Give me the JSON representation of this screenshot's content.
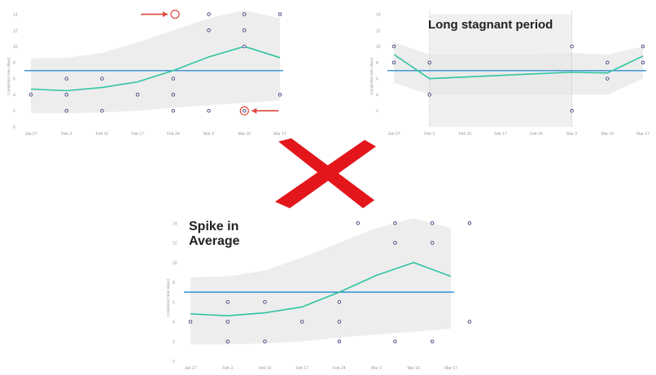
{
  "colors": {
    "average_line": "#2f8fd0",
    "trend_line": "#2ec4a0",
    "band_fill": "#ededed",
    "point_stroke": "#3a3f7a",
    "highlight": "#e0453a",
    "cross": "#e3161b",
    "grid": "#f3f3f3"
  },
  "annotations": {
    "long_stagnant_period": "Long stagnant period",
    "spike_line1": "Spike in",
    "spike_line2": "Average"
  },
  "chart_data": [
    {
      "type": "scatter",
      "panel": "top-left",
      "title": "",
      "ylabel": "Completion time (days)",
      "x_tick_labels": [
        "Jan 27",
        "Feb 3",
        "Feb 10",
        "Feb 17",
        "Feb 24",
        "Mar 3",
        "Mar 10",
        "Mar 17"
      ],
      "y_tick_labels": [
        "0",
        "2",
        "4",
        "6",
        "8",
        "10",
        "12",
        "14"
      ],
      "ylim": [
        0,
        14
      ],
      "average": 7,
      "points": [
        [
          0,
          4
        ],
        [
          1,
          6
        ],
        [
          1,
          4
        ],
        [
          1,
          2
        ],
        [
          2,
          6
        ],
        [
          2,
          2
        ],
        [
          3,
          4
        ],
        [
          4,
          6
        ],
        [
          4,
          4
        ],
        [
          4,
          2
        ],
        [
          5,
          14
        ],
        [
          5,
          12
        ],
        [
          5,
          2
        ],
        [
          6,
          14
        ],
        [
          6,
          12
        ],
        [
          6,
          10
        ],
        [
          6,
          2
        ],
        [
          7,
          14
        ],
        [
          7,
          4
        ]
      ],
      "trend": [
        [
          0,
          4.7
        ],
        [
          1,
          4.5
        ],
        [
          2,
          4.9
        ],
        [
          3,
          5.6
        ],
        [
          4,
          7
        ],
        [
          5,
          8.7
        ],
        [
          6,
          10
        ],
        [
          7,
          8.6
        ]
      ],
      "band_upper": [
        8.5,
        8.6,
        9.2,
        10.5,
        12,
        13.5,
        14.5,
        13.5
      ],
      "band_lower": [
        1.7,
        1.7,
        1.8,
        2.0,
        2.4,
        2.7,
        3.0,
        3.3
      ],
      "highlighted_points": [
        [
          4.05,
          14
        ],
        [
          6,
          2
        ]
      ],
      "grid": false
    },
    {
      "type": "scatter",
      "panel": "top-right",
      "title": "",
      "ylabel": "Completion time (days)",
      "x_tick_labels": [
        "Jan 27",
        "Feb 3",
        "Feb 10",
        "Feb 17",
        "Feb 24",
        "Mar 3",
        "Mar 10",
        "Mar 17"
      ],
      "y_tick_labels": [
        "2",
        "4",
        "6",
        "8",
        "10",
        "12",
        "14"
      ],
      "ylim": [
        0,
        14
      ],
      "average": 7,
      "points": [
        [
          0,
          10
        ],
        [
          0,
          8
        ],
        [
          1,
          8
        ],
        [
          1,
          4
        ],
        [
          5,
          10
        ],
        [
          5,
          2
        ],
        [
          6,
          8
        ],
        [
          6,
          6
        ],
        [
          7,
          10
        ],
        [
          7,
          8
        ]
      ],
      "trend": [
        [
          0,
          9
        ],
        [
          1,
          6
        ],
        [
          2,
          6.2
        ],
        [
          3,
          6.4
        ],
        [
          4,
          6.6
        ],
        [
          5,
          6.8
        ],
        [
          6,
          6.7
        ],
        [
          7,
          8.8
        ]
      ],
      "band_upper": [
        10.5,
        9,
        9,
        9,
        9,
        9.2,
        9,
        10
      ],
      "band_lower": [
        5.5,
        4,
        4,
        4,
        4,
        4,
        4,
        6
      ],
      "stagnant_range": [
        1,
        5
      ],
      "grid": false
    },
    {
      "type": "scatter",
      "panel": "bottom",
      "title": "",
      "ylabel": "Completion time (days)",
      "x_tick_labels": [
        "Jan 27",
        "Feb 3",
        "Feb 10",
        "Feb 17",
        "Feb 24",
        "Mar 3",
        "Mar 10",
        "Mar 17"
      ],
      "y_tick_labels": [
        "0",
        "2",
        "4",
        "6",
        "8",
        "10",
        "12",
        "14"
      ],
      "ylim": [
        0,
        14
      ],
      "average": 7,
      "points": [
        [
          0,
          4
        ],
        [
          1,
          6
        ],
        [
          1,
          4
        ],
        [
          1,
          2
        ],
        [
          2,
          6
        ],
        [
          2,
          2
        ],
        [
          3,
          4
        ],
        [
          4,
          6
        ],
        [
          4,
          4
        ],
        [
          4,
          2
        ],
        [
          4.5,
          14
        ],
        [
          5.5,
          14
        ],
        [
          5.5,
          12
        ],
        [
          5.5,
          2
        ],
        [
          6.5,
          14
        ],
        [
          6.5,
          12
        ],
        [
          6.5,
          2
        ],
        [
          7.5,
          14
        ],
        [
          7.5,
          4
        ]
      ],
      "trend": [
        [
          0,
          4.8
        ],
        [
          1,
          4.6
        ],
        [
          2,
          4.9
        ],
        [
          3,
          5.5
        ],
        [
          4,
          7
        ],
        [
          5,
          8.7
        ],
        [
          6,
          10
        ],
        [
          7,
          8.6
        ]
      ],
      "band_upper": [
        8.5,
        8.6,
        9.2,
        10.5,
        12,
        13.5,
        14.5,
        13.5
      ],
      "band_lower": [
        1.7,
        1.7,
        1.8,
        2.0,
        2.4,
        2.7,
        3.0,
        3.3
      ],
      "grid": false
    }
  ]
}
